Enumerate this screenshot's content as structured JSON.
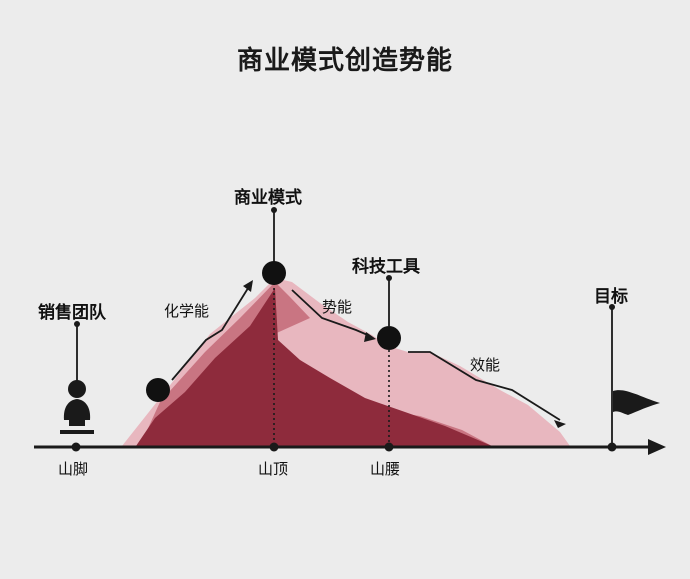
{
  "title": "商业模式创造势能",
  "labels": {
    "sales_team": "销售团队",
    "business_model": "商业模式",
    "tech_tools": "科技工具",
    "goal": "目标"
  },
  "energy_labels": {
    "chemical": "化学能",
    "potential": "势能",
    "efficiency": "效能"
  },
  "axis_labels": {
    "foot": "山脚",
    "peak": "山顶",
    "waist": "山腰"
  },
  "colors": {
    "dark_mountain": "#8e2b3c",
    "mid_mountain": "#c97582",
    "light_mountain": "#e8b7bf",
    "ink": "#1a1a1a",
    "background": "#ececec"
  },
  "icons": {
    "sales_team": "bust-statue-icon",
    "goal": "flag-icon"
  }
}
